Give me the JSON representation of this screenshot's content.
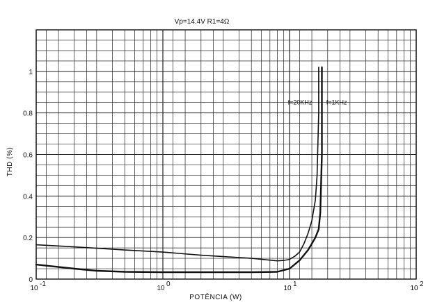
{
  "chart_data": {
    "type": "line",
    "title": "Vp=14.4V R1=4Ω",
    "xlabel": "POTÊNCIA   (W)",
    "ylabel": "THD   (%)",
    "x_scale": "log",
    "xlim": [
      0.1,
      100
    ],
    "ylim": [
      0,
      1.2
    ],
    "grid": true,
    "x_tick_labels": [
      {
        "value": 0.1,
        "base": "10",
        "exp": "-1"
      },
      {
        "value": 1,
        "base": "10",
        "exp": "0"
      },
      {
        "value": 10,
        "base": "10",
        "exp": "1"
      },
      {
        "value": 100,
        "base": "10",
        "exp": "2"
      }
    ],
    "y_ticks": [
      0,
      0.2,
      0.4,
      0.6,
      0.8,
      1
    ],
    "y_tick_labels": [
      "0",
      "0.2",
      "0.4",
      "0.6",
      "0.8",
      "1"
    ],
    "series": [
      {
        "name": "f=20KHz",
        "x": [
          0.1,
          0.2,
          0.5,
          1,
          2,
          5,
          8,
          9,
          10,
          11,
          12,
          13,
          14,
          15,
          16,
          16.5,
          17,
          17,
          17
        ],
        "y": [
          0.165,
          0.155,
          0.14,
          0.13,
          0.115,
          0.1,
          0.088,
          0.09,
          0.095,
          0.11,
          0.13,
          0.17,
          0.22,
          0.28,
          0.38,
          0.5,
          0.8,
          1.0,
          1.02
        ]
      },
      {
        "name": "f=1KHz",
        "x": [
          0.1,
          0.2,
          0.3,
          0.5,
          1,
          2,
          5,
          8,
          10,
          12,
          14,
          15,
          16,
          17,
          17.5,
          18,
          18,
          18
        ],
        "y": [
          0.07,
          0.05,
          0.04,
          0.035,
          0.033,
          0.033,
          0.033,
          0.035,
          0.05,
          0.09,
          0.14,
          0.17,
          0.2,
          0.24,
          0.32,
          0.6,
          0.9,
          1.02
        ]
      }
    ],
    "curve_labels": [
      {
        "text": "f=20KHz",
        "x": 9.7,
        "y": 0.84
      },
      {
        "text": "f=1KHz",
        "x": 19.5,
        "y": 0.84
      }
    ]
  }
}
